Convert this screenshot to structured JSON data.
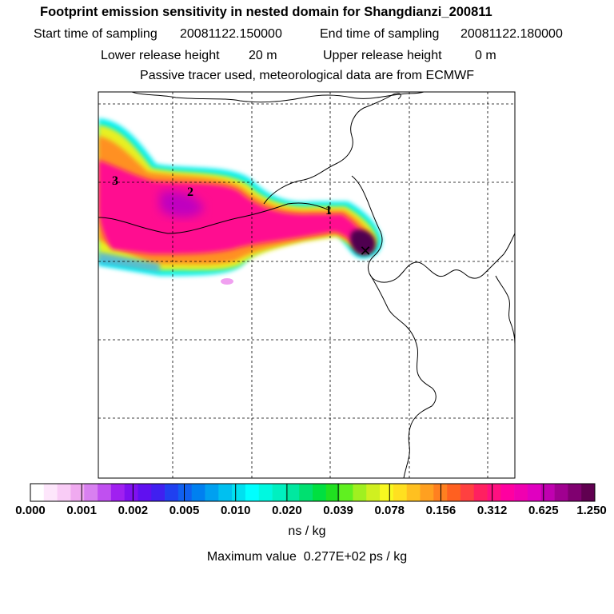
{
  "header": {
    "title": "Footprint emission sensitivity in nested domain for Shangdianzi_200811",
    "start_label": "Start time of sampling",
    "start_value": "20081122.150000",
    "end_label": "End time of sampling",
    "end_value": "20081122.180000",
    "lower_label": "Lower release height",
    "lower_value": "20 m",
    "upper_label": "Upper release height",
    "upper_value": "0 m",
    "note": "Passive tracer used, meteorological data are from ECMWF"
  },
  "map": {
    "markers": [
      "3",
      "2",
      "1"
    ],
    "receptor_symbol": "✕"
  },
  "colorbar": {
    "labels": [
      "0.000",
      "0.001",
      "0.002",
      "0.005",
      "0.010",
      "0.020",
      "0.039",
      "0.078",
      "0.156",
      "0.312",
      "0.625",
      "1.250"
    ],
    "colors": [
      "#ffffff",
      "#fde6fb",
      "#f9ccf6",
      "#f0aaf0",
      "#d880f0",
      "#c050f0",
      "#a020f0",
      "#8010f0",
      "#6010f0",
      "#4020f0",
      "#2040f0",
      "#1060f0",
      "#0080f0",
      "#00a0f0",
      "#00c0f0",
      "#00e0f0",
      "#00ffff",
      "#00f8e0",
      "#00f0c0",
      "#00e8a0",
      "#00e070",
      "#00e040",
      "#20e020",
      "#60f020",
      "#a0f020",
      "#d0f020",
      "#f8f820",
      "#ffe020",
      "#ffc020",
      "#ffa020",
      "#ff8020",
      "#ff6020",
      "#ff4040",
      "#ff2060",
      "#ff1080",
      "#ff00a0",
      "#f000b0",
      "#e000c0",
      "#c000b0",
      "#a00090",
      "#800070",
      "#600050"
    ],
    "units": "ns / kg"
  },
  "footer": {
    "max_label": "Maximum value",
    "max_value": "0.277E+02 ps / kg"
  }
}
